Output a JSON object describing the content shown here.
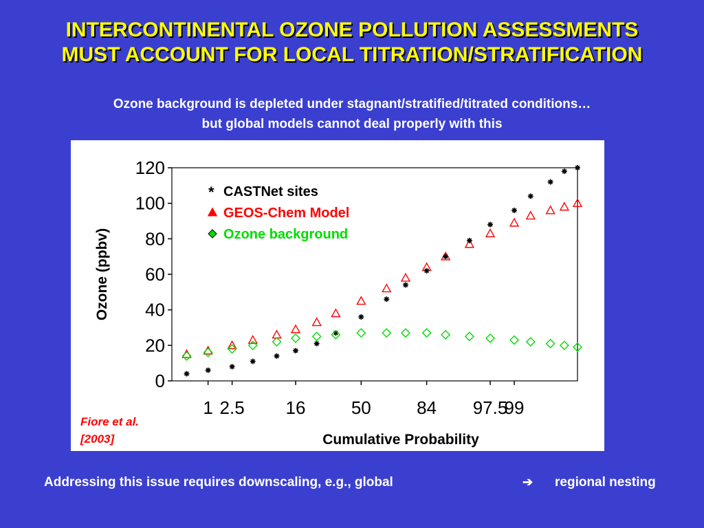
{
  "slide": {
    "title_line1": "INTERCONTINENTAL OZONE POLLUTION ASSESSMENTS",
    "title_line2": "MUST ACCOUNT FOR LOCAL TITRATION/STRATIFICATION",
    "subtitle_line1": "Ozone background is depleted under stagnant/stratified/titrated conditions…",
    "subtitle_line2": "but global models cannot deal properly with this",
    "footer_left": "Addressing this issue requires downscaling, e.g.,  global",
    "footer_arrow": "➔",
    "footer_right": "regional nesting",
    "colors": {
      "background": "#3b3fd0",
      "title": "#ffff00",
      "text": "#ffffff"
    }
  },
  "chart_data": {
    "type": "scatter",
    "xlabel": "Cumulative Probability",
    "ylabel": "Ozone (ppbv)",
    "x_scale": "probability",
    "x_ticks": [
      "1",
      "2.5",
      "16",
      "50",
      "84",
      "97.5",
      "99"
    ],
    "x_tick_values": [
      1,
      2.5,
      16,
      50,
      84,
      97.5,
      99
    ],
    "y_ticks": [
      "0",
      "20",
      "40",
      "60",
      "80",
      "100",
      "120"
    ],
    "y_tick_values": [
      0,
      20,
      40,
      60,
      80,
      100,
      120
    ],
    "ylim": [
      0,
      120
    ],
    "citation_line1": "Fiore et al.",
    "citation_line2": "[2003]",
    "legend_position": "top-left",
    "series": [
      {
        "name": "CASTNet sites",
        "marker": "*",
        "color": "#000000",
        "points": [
          [
            0.4,
            4
          ],
          [
            1,
            6
          ],
          [
            2.5,
            8
          ],
          [
            5,
            11
          ],
          [
            10,
            14
          ],
          [
            16,
            17
          ],
          [
            25,
            21
          ],
          [
            35,
            27
          ],
          [
            50,
            36
          ],
          [
            65,
            46
          ],
          [
            75,
            54
          ],
          [
            84,
            62
          ],
          [
            90,
            70
          ],
          [
            95,
            79
          ],
          [
            97.5,
            88
          ],
          [
            99,
            96
          ],
          [
            99.5,
            104
          ],
          [
            99.8,
            112
          ],
          [
            99.9,
            118
          ],
          [
            99.95,
            120
          ]
        ]
      },
      {
        "name": "GEOS-Chem Model",
        "marker": "triangle",
        "color": "#ff0000",
        "points": [
          [
            0.4,
            15
          ],
          [
            1,
            17
          ],
          [
            2.5,
            20
          ],
          [
            5,
            23
          ],
          [
            10,
            26
          ],
          [
            16,
            29
          ],
          [
            25,
            33
          ],
          [
            35,
            38
          ],
          [
            50,
            45
          ],
          [
            65,
            52
          ],
          [
            75,
            58
          ],
          [
            84,
            64
          ],
          [
            90,
            70
          ],
          [
            95,
            77
          ],
          [
            97.5,
            83
          ],
          [
            99,
            89
          ],
          [
            99.5,
            93
          ],
          [
            99.8,
            96
          ],
          [
            99.9,
            98
          ],
          [
            99.95,
            100
          ]
        ]
      },
      {
        "name": "Ozone background",
        "marker": "diamond",
        "color": "#00dd00",
        "points": [
          [
            0.4,
            14
          ],
          [
            1,
            16
          ],
          [
            2.5,
            18
          ],
          [
            5,
            20
          ],
          [
            10,
            22
          ],
          [
            16,
            24
          ],
          [
            25,
            25
          ],
          [
            35,
            26
          ],
          [
            50,
            27
          ],
          [
            65,
            27
          ],
          [
            75,
            27
          ],
          [
            84,
            27
          ],
          [
            90,
            26
          ],
          [
            95,
            25
          ],
          [
            97.5,
            24
          ],
          [
            99,
            23
          ],
          [
            99.5,
            22
          ],
          [
            99.8,
            21
          ],
          [
            99.9,
            20
          ],
          [
            99.95,
            19
          ]
        ]
      }
    ]
  }
}
